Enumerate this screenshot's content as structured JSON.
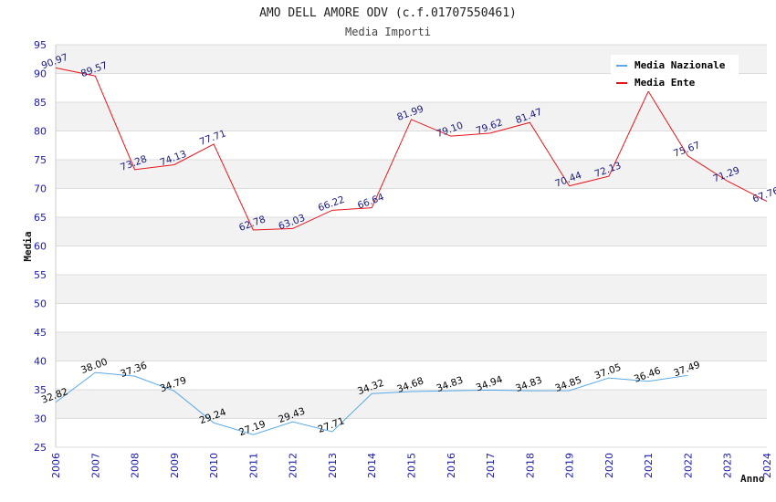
{
  "chart_data": {
    "type": "line",
    "title": "AMO DELL AMORE ODV (c.f.01707550461)",
    "subtitle": "Media Importi",
    "ylabel": "Media",
    "xlabel": "Anno",
    "ylim": [
      25,
      95
    ],
    "y_ticks": [
      25,
      30,
      35,
      40,
      45,
      50,
      55,
      60,
      65,
      70,
      75,
      80,
      85,
      90,
      95
    ],
    "x": [
      "2006",
      "2007",
      "2008",
      "2009",
      "2010",
      "2011",
      "2012",
      "2013",
      "2014",
      "2015",
      "2016",
      "2017",
      "2018",
      "2019",
      "2020",
      "2021",
      "2022",
      "2023",
      "2024"
    ],
    "grid": true,
    "legend_position": "top-right",
    "series": [
      {
        "name": "Media Nazionale",
        "color": "#5aa9e6",
        "label_color": "#000000",
        "values": [
          32.82,
          38.0,
          37.36,
          34.79,
          29.24,
          27.19,
          29.43,
          27.71,
          34.32,
          34.68,
          34.83,
          34.94,
          34.83,
          34.85,
          37.05,
          36.46,
          37.49,
          null,
          null
        ],
        "labels": [
          "32.82",
          "38.00",
          "37.36",
          "34.79",
          "29.24",
          "27.19",
          "29.43",
          "27.71",
          "34.32",
          "34.68",
          "34.83",
          "34.94",
          "34.83",
          "34.85",
          "37.05",
          "36.46",
          "37.49",
          null,
          null
        ]
      },
      {
        "name": "Media Ente",
        "color": "#e8141a",
        "label_color": "#1a1a80",
        "values": [
          90.97,
          89.57,
          73.28,
          74.13,
          77.71,
          62.78,
          63.03,
          66.22,
          66.64,
          81.99,
          79.1,
          79.62,
          81.47,
          70.44,
          72.13,
          86.9,
          75.67,
          71.29,
          67.76
        ],
        "labels": [
          "90.97",
          "89.57",
          "73.28",
          "74.13",
          "77.71",
          "62.78",
          "63.03",
          "66.22",
          "66.64",
          "81.99",
          "79.10",
          "79.62",
          "81.47",
          "70.44",
          "72.13",
          null,
          "75.67",
          "71.29",
          "67.76"
        ]
      }
    ]
  }
}
